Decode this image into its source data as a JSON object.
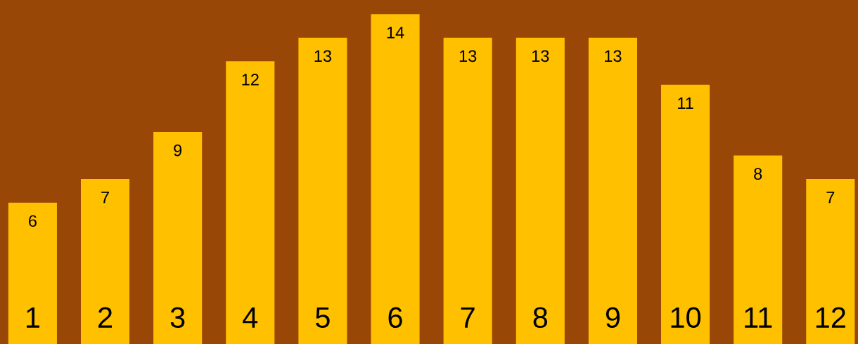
{
  "chart_data": {
    "type": "bar",
    "categories": [
      "1",
      "2",
      "3",
      "4",
      "5",
      "6",
      "7",
      "8",
      "9",
      "10",
      "11",
      "12"
    ],
    "values": [
      6,
      7,
      9,
      12,
      13,
      14,
      13,
      13,
      13,
      11,
      8,
      7
    ],
    "color": "#ffc000",
    "ylim": [
      0,
      14.6
    ],
    "data_labels": true
  }
}
